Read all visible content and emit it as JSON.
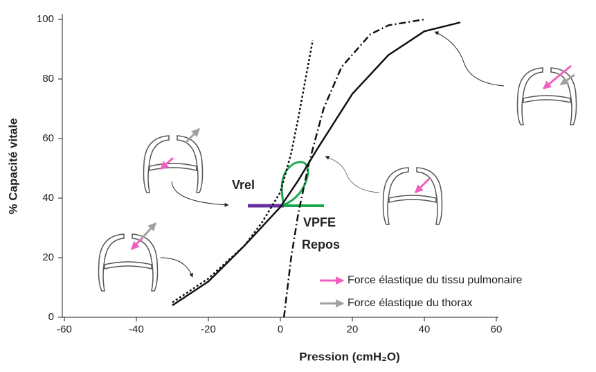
{
  "chart_data": {
    "type": "line",
    "xlabel": "Pression (cmH₂O)",
    "ylabel": "% Capacité vitale",
    "xlim": [
      -60,
      60
    ],
    "xticks": [
      -60,
      -40,
      -20,
      0,
      20,
      40,
      60
    ],
    "ylim": [
      0,
      100
    ],
    "yticks": [
      0,
      20,
      40,
      60,
      80,
      100
    ],
    "series": [
      {
        "color": "#111111",
        "style": "solid",
        "x": [
          -30,
          -20,
          -10,
          0,
          5,
          10,
          20,
          30,
          40,
          50
        ],
        "values": [
          4,
          12,
          24,
          37,
          46,
          56,
          75,
          88,
          96,
          99
        ]
      },
      {
        "color": "#111111",
        "style": "dotted",
        "x": [
          -30,
          -20,
          -10,
          -5,
          0,
          3,
          5,
          7,
          9
        ],
        "values": [
          5,
          13,
          24,
          32,
          42,
          55,
          67,
          80,
          93
        ]
      },
      {
        "color": "#111111",
        "style": "dashdot",
        "x": [
          1,
          3,
          5,
          8,
          12,
          17,
          25,
          30,
          40
        ],
        "values": [
          0,
          20,
          35,
          52,
          70,
          84,
          95,
          98,
          100
        ]
      }
    ],
    "annotations": [
      {
        "text": "Vrel",
        "color": "#6a2d9c"
      },
      {
        "text": "VPFE",
        "color": "#1aa84f"
      },
      {
        "text": "Repos",
        "color": "#1aa84f"
      }
    ],
    "legend": [
      {
        "label": "Force élastique du tissu pulmonaire",
        "color": "#ee5fbf"
      },
      {
        "label": "Force élastique du thorax",
        "color": "#a0a0a0"
      }
    ]
  }
}
